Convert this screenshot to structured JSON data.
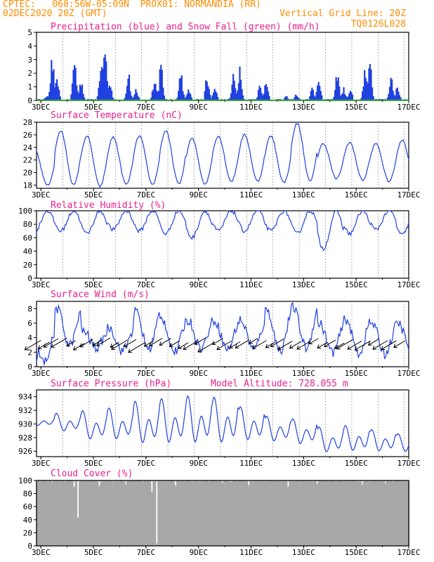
{
  "header": {
    "line1": "CPTEC:   060:56W-05:09N  PROX01: NORMANDIA (RR)",
    "line2_left": "02DEC2020 20Z (GMT)",
    "line2_right": "Vertical Grid Line: 20Z",
    "line3_right": "TQ0126L028",
    "color": "#ff8c00"
  },
  "colors": {
    "title": "#e8208e",
    "line": "#2040e0",
    "bar": "#2040e0",
    "snow": "#20b020",
    "cloud": "#a8a8a8",
    "grid": "#808080"
  },
  "x_tick_labels": [
    "3DEC",
    "5DEC",
    "7DEC",
    "9DEC",
    "11DEC",
    "13DEC",
    "15DEC",
    "17DEC"
  ],
  "chart_data": [
    {
      "type": "bar",
      "title": "Precipitation (blue) and Snow Fall (green) (mm/h)",
      "ylim": [
        0,
        5
      ],
      "yticks": [
        "0",
        "1",
        "2",
        "3",
        "4",
        "5"
      ],
      "series": [
        {
          "name": "Precipitation",
          "events": [
            {
              "day": 2.1,
              "peak": 1.0
            },
            {
              "day": 2.25,
              "peak": 2.8
            },
            {
              "day": 2.45,
              "peak": 1.2
            },
            {
              "day": 3.2,
              "peak": 0.4
            },
            {
              "day": 3.4,
              "peak": 3.4
            },
            {
              "day": 3.6,
              "peak": 1.6
            },
            {
              "day": 4.25,
              "peak": 3.6
            },
            {
              "day": 4.5,
              "peak": 1.8
            },
            {
              "day": 5.25,
              "peak": 2.2
            },
            {
              "day": 5.4,
              "peak": 4.6
            },
            {
              "day": 5.6,
              "peak": 1.5
            },
            {
              "day": 6.3,
              "peak": 2.4
            },
            {
              "day": 6.6,
              "peak": 1.0
            },
            {
              "day": 7.3,
              "peak": 2.0
            },
            {
              "day": 7.55,
              "peak": 3.2
            },
            {
              "day": 8.3,
              "peak": 2.4
            },
            {
              "day": 8.6,
              "peak": 1.0
            },
            {
              "day": 9.3,
              "peak": 2.2
            },
            {
              "day": 9.6,
              "peak": 1.3
            },
            {
              "day": 10.3,
              "peak": 2.0
            },
            {
              "day": 10.55,
              "peak": 3.0
            },
            {
              "day": 11.3,
              "peak": 1.2
            },
            {
              "day": 11.55,
              "peak": 2.0
            },
            {
              "day": 12.3,
              "peak": 0.4
            },
            {
              "day": 12.7,
              "peak": 0.5
            },
            {
              "day": 13.3,
              "peak": 1.0
            },
            {
              "day": 13.55,
              "peak": 2.0
            },
            {
              "day": 14.25,
              "peak": 2.6
            },
            {
              "day": 14.5,
              "peak": 1.0
            },
            {
              "day": 14.75,
              "peak": 1.0
            },
            {
              "day": 15.3,
              "peak": 2.4
            },
            {
              "day": 15.5,
              "peak": 3.0
            },
            {
              "day": 16.3,
              "peak": 2.4
            },
            {
              "day": 16.55,
              "peak": 1.2
            }
          ]
        },
        {
          "name": "Snow Fall",
          "values": "0 throughout"
        }
      ]
    },
    {
      "type": "line",
      "title": "Surface Temperature (nC)",
      "ylim": [
        17.5,
        28
      ],
      "yticks": [
        "18",
        "20",
        "22",
        "24",
        "26",
        "28"
      ],
      "daily_min": [
        18.0,
        18.0,
        17.8,
        18.1,
        18.1,
        18.2,
        18.2,
        18.6,
        18.6,
        18.4,
        18.6,
        19.0,
        18.8,
        18.6,
        18.6
      ],
      "daily_max": [
        23.8,
        26.6,
        25.8,
        25.6,
        25.8,
        26.6,
        25.4,
        25.8,
        26.0,
        25.8,
        27.8,
        24.6,
        24.8,
        24.6,
        25.2
      ]
    },
    {
      "type": "line",
      "title": "Relative Humidity (%)",
      "ylim": [
        0,
        100
      ],
      "yticks": [
        "0",
        "20",
        "40",
        "60",
        "80",
        "100"
      ],
      "daily_min": [
        68,
        70,
        66,
        72,
        70,
        66,
        60,
        70,
        70,
        70,
        66,
        44,
        66,
        72,
        64
      ]
    },
    {
      "type": "line",
      "title": "Surface Wind (m/s)",
      "ylim": [
        0,
        9
      ],
      "yticks": [
        "0",
        "2",
        "4",
        "6",
        "8"
      ],
      "daily_max": [
        4.6,
        8.0,
        5.0,
        5.4,
        7.6,
        6.6,
        6.4,
        6.4,
        6.4,
        7.8,
        8.2,
        6.0,
        6.6,
        6.0,
        6.0
      ],
      "daily_min": [
        0.6,
        3.0,
        2.6,
        2.2,
        2.4,
        2.0,
        2.6,
        2.4,
        2.4,
        2.2,
        2.6,
        2.0,
        1.8,
        1.8,
        2.2
      ]
    },
    {
      "type": "line",
      "title": "Surface Pressure (hPa)",
      "annotation": "Model Altitude: 728.055 m",
      "ylim": [
        925.2,
        935
      ],
      "yticks": [
        "926",
        "928",
        "930",
        "932",
        "934"
      ],
      "daily_max": [
        931.0,
        931.6,
        932.0,
        932.4,
        933.4,
        933.8,
        934.2,
        934.0,
        932.6,
        931.2,
        930.8,
        929.6,
        929.8,
        929.2,
        928.6
      ],
      "daily_min": [
        929.6,
        928.6,
        927.2,
        927.2,
        926.4,
        926.4,
        926.4,
        926.4,
        927.0,
        927.0,
        926.6,
        925.4,
        925.6,
        925.6,
        925.6
      ]
    },
    {
      "type": "area",
      "title": "Cloud Cover (%)",
      "ylim": [
        0,
        100
      ],
      "yticks": [
        "0",
        "20",
        "40",
        "60",
        "80",
        "100"
      ],
      "dips": [
        {
          "day": 4.4,
          "min": 40
        },
        {
          "day": 4.25,
          "min": 88
        },
        {
          "day": 5.2,
          "min": 88
        },
        {
          "day": 5.75,
          "min": 95
        },
        {
          "day": 6.2,
          "min": 92
        },
        {
          "day": 7.4,
          "min": 0
        },
        {
          "day": 7.2,
          "min": 80
        },
        {
          "day": 8.1,
          "min": 88
        },
        {
          "day": 8.8,
          "min": 93
        },
        {
          "day": 9.9,
          "min": 93
        },
        {
          "day": 10.9,
          "min": 90
        },
        {
          "day": 12.4,
          "min": 86
        },
        {
          "day": 13.5,
          "min": 90
        },
        {
          "day": 15.2,
          "min": 92
        },
        {
          "day": 16.1,
          "min": 93
        }
      ],
      "base": 98
    }
  ]
}
